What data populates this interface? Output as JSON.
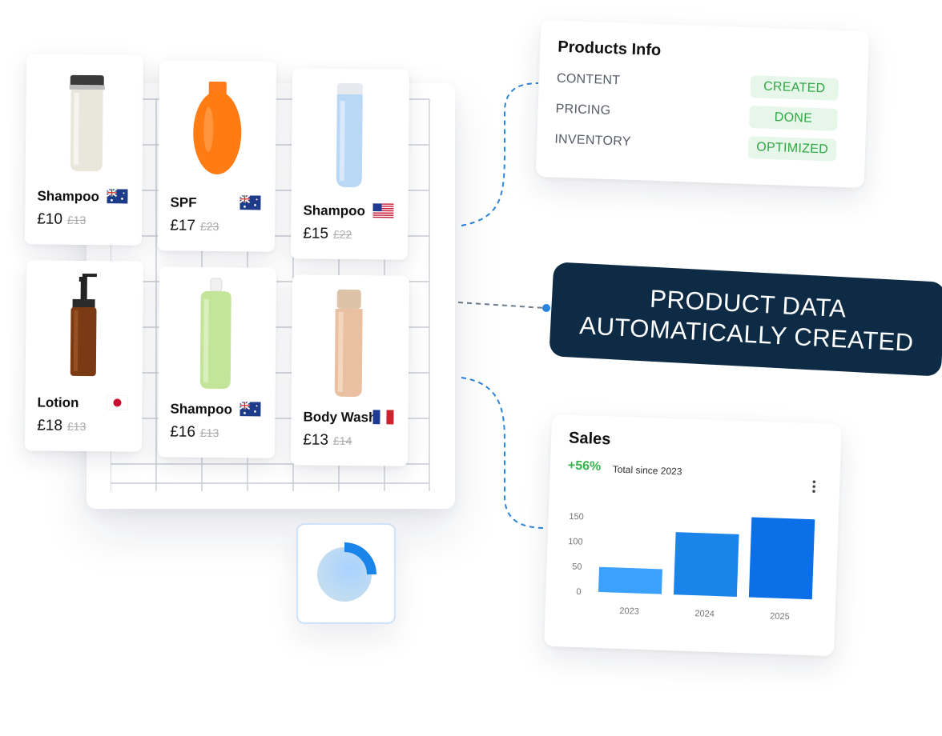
{
  "products": [
    {
      "name": "Shampoo",
      "price": "£10",
      "old_price": "£13",
      "flag": "australia-flag"
    },
    {
      "name": "SPF",
      "price": "£17",
      "old_price": "£23",
      "flag": "australia-flag"
    },
    {
      "name": "Shampoo",
      "price": "£15",
      "old_price": "£22",
      "flag": "usa-flag"
    },
    {
      "name": "Lotion",
      "price": "£18",
      "old_price": "£13",
      "flag": "japan-flag"
    },
    {
      "name": "Shampoo",
      "price": "£16",
      "old_price": "£13",
      "flag": "australia-flag"
    },
    {
      "name": "Body Wash",
      "price": "£13",
      "old_price": "£14",
      "flag": "france-flag"
    }
  ],
  "products_info": {
    "title": "Products Info",
    "rows": [
      {
        "label": "CONTENT",
        "status": "CREATED"
      },
      {
        "label": "PRICING",
        "status": "DONE"
      },
      {
        "label": "INVENTORY",
        "status": "OPTIMIZED"
      }
    ],
    "status_color": "#2fa845"
  },
  "banner": {
    "line1": "PRODUCT DATA",
    "line2": "AUTOMATICALLY CREATED"
  },
  "sales": {
    "title": "Sales",
    "growth": "+56%",
    "subtitle": "Total since 2023",
    "menu_icon": "vertical-dots-icon"
  },
  "chart_data": {
    "type": "bar",
    "categories": [
      "2023",
      "2024",
      "2025"
    ],
    "values": [
      50,
      125,
      160
    ],
    "yticks": [
      0,
      50,
      100,
      150
    ],
    "ylim": [
      0,
      160
    ],
    "colors": [
      "#3ba1ff",
      "#1a84ea",
      "#0b6fe8"
    ],
    "title": "",
    "xlabel": "",
    "ylabel": ""
  },
  "colors": {
    "banner_bg": "#0d2b45",
    "accent_blue": "#1a84ea",
    "growth_green": "#37b24d"
  },
  "progress": {
    "icon": "progress-ring-icon",
    "fraction": 0.25
  }
}
